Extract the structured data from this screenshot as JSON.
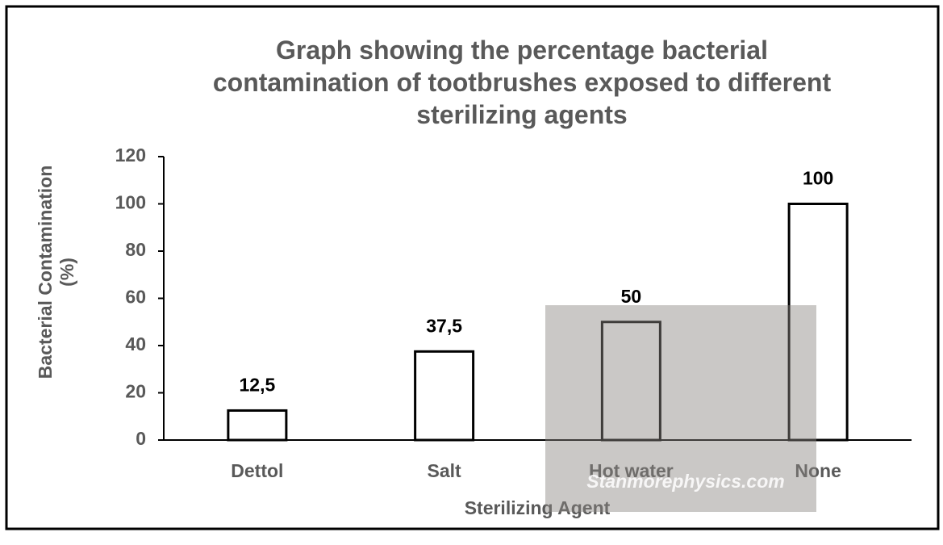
{
  "chart_data": {
    "type": "bar",
    "title": "Graph showing the percentage bacterial contamination of tootbrushes exposed to different sterilizing agents",
    "x_label": "Sterilizing Agent",
    "y_label": "Bacterial Contamination (%)",
    "categories": [
      "Dettol",
      "Salt",
      "Hot water",
      "None"
    ],
    "values": [
      12.5,
      37.5,
      50,
      100
    ],
    "value_labels": [
      "12,5",
      "37,5",
      "50",
      "100"
    ],
    "color": "#ffffff",
    "edge_color": "#000000",
    "ylim": [
      0,
      120
    ],
    "yticks": [
      0,
      20,
      40,
      60,
      80,
      100,
      120
    ],
    "grid": false,
    "watermark": "Stanmorephysics.com"
  }
}
